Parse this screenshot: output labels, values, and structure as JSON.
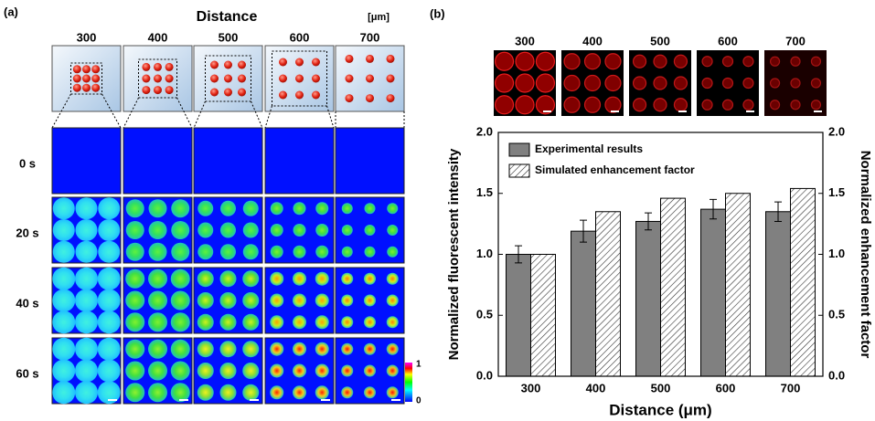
{
  "panel_a": {
    "label": "(a)",
    "title": "Distance",
    "unit": "[μm]",
    "columns": [
      "300",
      "400",
      "500",
      "600",
      "700"
    ],
    "rows": [
      "0 s",
      "20 s",
      "40 s",
      "60 s"
    ],
    "colorbar": {
      "max": "1",
      "min": "0"
    }
  },
  "panel_b": {
    "label": "(b)",
    "columns": [
      "300",
      "400",
      "500",
      "600",
      "700"
    ]
  },
  "chart_data": {
    "type": "bar",
    "xlabel": "Distance (μm)",
    "ylabel": "Normalized fluorescent intensity",
    "y2label": "Normalized enhancement factor",
    "categories": [
      "300",
      "400",
      "500",
      "600",
      "700"
    ],
    "series": [
      {
        "name": "Experimental results",
        "color": "#808080",
        "values": [
          1.0,
          1.19,
          1.27,
          1.37,
          1.35
        ],
        "errors": [
          0.07,
          0.09,
          0.07,
          0.08,
          0.08
        ]
      },
      {
        "name": "Simulated enhancement factor",
        "color": "#ffffff",
        "hatch": true,
        "axis": "y2",
        "values": [
          1.0,
          1.35,
          1.46,
          1.5,
          1.54
        ]
      }
    ],
    "ylim": [
      0,
      2
    ],
    "yticks": [
      {
        "value": 0,
        "label": "0.0"
      },
      {
        "value": 0.5,
        "label": "0.5"
      },
      {
        "value": 1,
        "label": "1.0"
      },
      {
        "value": 1.5,
        "label": "1.5"
      },
      {
        "value": 2,
        "label": "2.0"
      }
    ],
    "y2lim": [
      0,
      2
    ],
    "y2ticks": [
      {
        "value": 0,
        "label": "0.0"
      },
      {
        "value": 0.5,
        "label": "0.5"
      },
      {
        "value": 1,
        "label": "1.0"
      },
      {
        "value": 1.5,
        "label": "1.5"
      },
      {
        "value": 2,
        "label": "2.0"
      }
    ],
    "legend": "upper left"
  }
}
